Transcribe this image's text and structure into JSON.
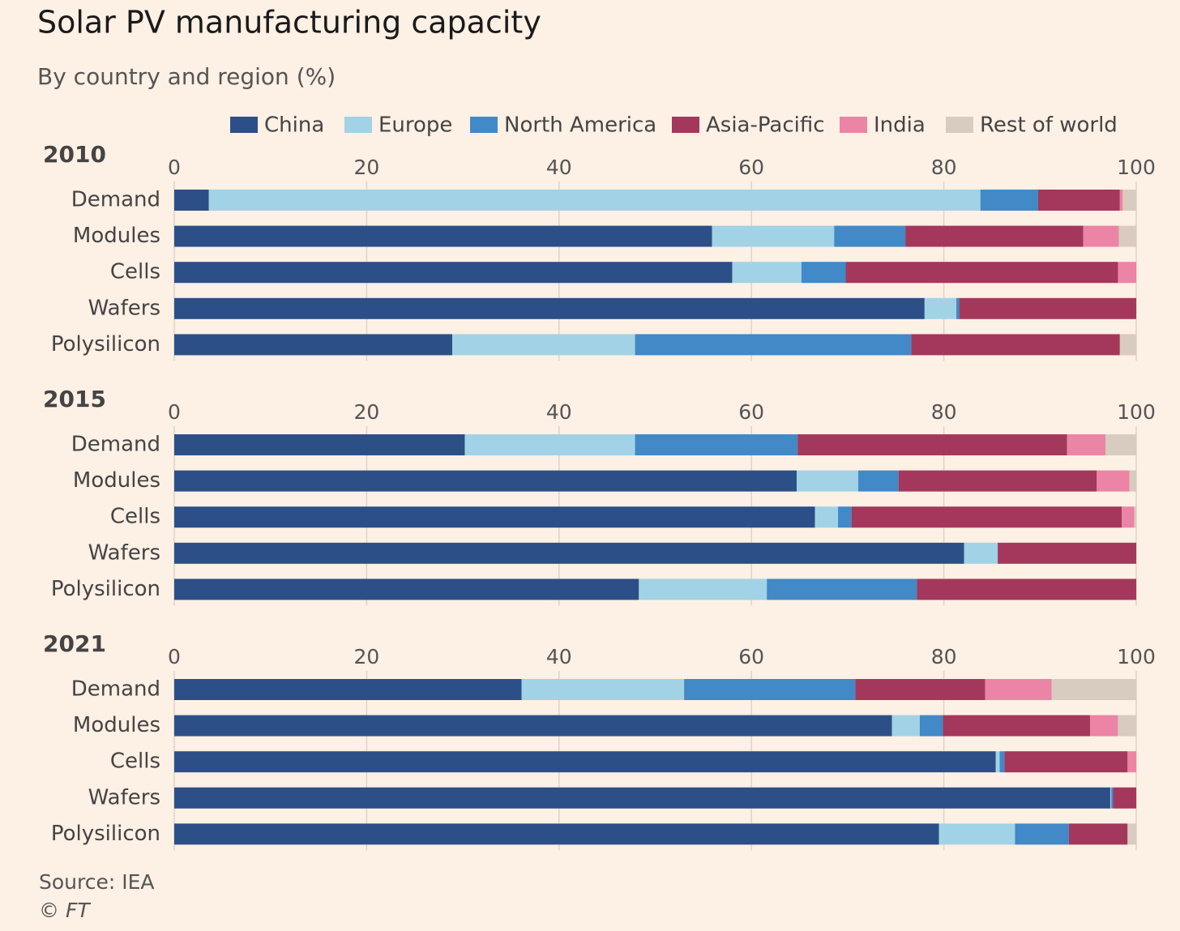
{
  "header": {
    "title": "Solar PV manufacturing capacity",
    "subtitle": "By country and region (%)"
  },
  "footer": {
    "source": "Source: IEA",
    "credit": "© FT"
  },
  "chart_data": [
    {
      "type": "stacked-bar-horizontal",
      "title": "2010",
      "categories": [
        "Demand",
        "Modules",
        "Cells",
        "Wafers",
        "Polysilicon"
      ],
      "xlim": [
        0,
        100
      ],
      "xticks": [
        0,
        20,
        40,
        60,
        80,
        100
      ],
      "grid": true,
      "series": [
        {
          "name": "China",
          "color": "#2d4f87",
          "values": [
            3.6,
            55.9,
            58.0,
            78.0,
            28.9
          ]
        },
        {
          "name": "Europe",
          "color": "#a2d2e6",
          "values": [
            80.2,
            12.7,
            7.2,
            3.3,
            19.0
          ]
        },
        {
          "name": "North America",
          "color": "#4189c7",
          "values": [
            6.0,
            7.4,
            4.6,
            0.3,
            28.7
          ]
        },
        {
          "name": "Asia-Pacific",
          "color": "#a3385c",
          "values": [
            8.5,
            18.5,
            28.3,
            18.4,
            21.7
          ]
        },
        {
          "name": "India",
          "color": "#ec84a6",
          "values": [
            0.3,
            3.7,
            1.9,
            0,
            0
          ]
        },
        {
          "name": "Rest of world",
          "color": "#d8cbc0",
          "values": [
            1.4,
            1.8,
            0,
            0,
            1.7
          ]
        }
      ]
    },
    {
      "type": "stacked-bar-horizontal",
      "title": "2015",
      "categories": [
        "Demand",
        "Modules",
        "Cells",
        "Wafers",
        "Polysilicon"
      ],
      "xlim": [
        0,
        100
      ],
      "xticks": [
        0,
        20,
        40,
        60,
        80,
        100
      ],
      "grid": true,
      "series": [
        {
          "name": "China",
          "color": "#2d4f87",
          "values": [
            30.2,
            64.7,
            66.6,
            82.1,
            48.3
          ]
        },
        {
          "name": "Europe",
          "color": "#a2d2e6",
          "values": [
            17.7,
            6.4,
            2.4,
            3.5,
            13.3
          ]
        },
        {
          "name": "North America",
          "color": "#4189c7",
          "values": [
            16.9,
            4.2,
            1.4,
            0,
            15.6
          ]
        },
        {
          "name": "Asia-Pacific",
          "color": "#a3385c",
          "values": [
            28.0,
            20.6,
            28.1,
            14.4,
            22.8
          ]
        },
        {
          "name": "India",
          "color": "#ec84a6",
          "values": [
            4.0,
            3.4,
            1.3,
            0,
            0
          ]
        },
        {
          "name": "Rest of world",
          "color": "#d8cbc0",
          "values": [
            3.2,
            0.7,
            0.2,
            0,
            0
          ]
        }
      ]
    },
    {
      "type": "stacked-bar-horizontal",
      "title": "2021",
      "categories": [
        "Demand",
        "Modules",
        "Cells",
        "Wafers",
        "Polysilicon"
      ],
      "xlim": [
        0,
        100
      ],
      "xticks": [
        0,
        20,
        40,
        60,
        80,
        100
      ],
      "grid": true,
      "series": [
        {
          "name": "China",
          "color": "#2d4f87",
          "values": [
            36.1,
            74.6,
            85.4,
            97.3,
            79.5
          ]
        },
        {
          "name": "Europe",
          "color": "#a2d2e6",
          "values": [
            16.9,
            2.9,
            0.4,
            0.1,
            7.9
          ]
        },
        {
          "name": "North America",
          "color": "#4189c7",
          "values": [
            17.8,
            2.4,
            0.5,
            0.2,
            5.6
          ]
        },
        {
          "name": "Asia-Pacific",
          "color": "#a3385c",
          "values": [
            13.5,
            15.3,
            12.8,
            2.4,
            6.1
          ]
        },
        {
          "name": "India",
          "color": "#ec84a6",
          "values": [
            6.9,
            2.9,
            0.9,
            0,
            0
          ]
        },
        {
          "name": "Rest of world",
          "color": "#d8cbc0",
          "values": [
            8.8,
            1.9,
            0,
            0,
            0.9
          ]
        }
      ]
    }
  ]
}
